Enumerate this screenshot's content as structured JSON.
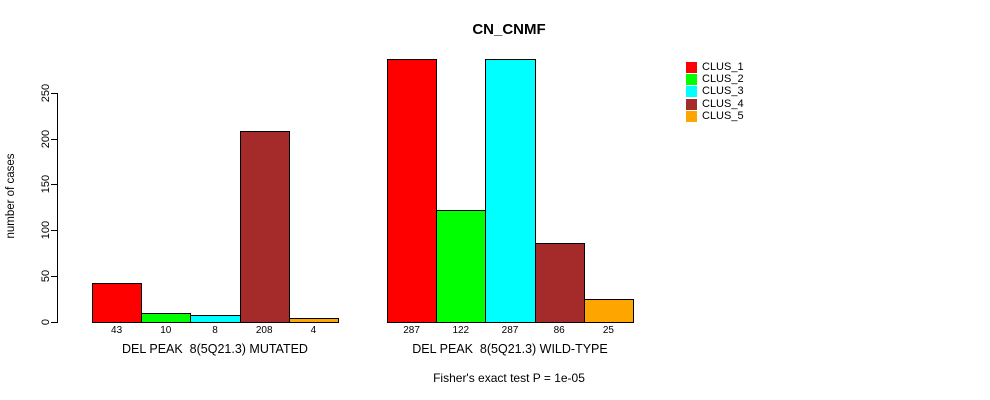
{
  "title": "CN_CNMF",
  "footer": "Fisher's exact test P = 1e-05",
  "y_axis": {
    "label": "number of cases",
    "ticks": [
      0,
      50,
      100,
      150,
      200,
      250
    ]
  },
  "legend": {
    "position": "right",
    "items": [
      {
        "label": "CLUS_1",
        "color": "#FF0000"
      },
      {
        "label": "CLUS_2",
        "color": "#00FF00"
      },
      {
        "label": "CLUS_3",
        "color": "#00FFFF"
      },
      {
        "label": "CLUS_4",
        "color": "#A52A2A"
      },
      {
        "label": "CLUS_5",
        "color": "#FFA500"
      }
    ]
  },
  "chart_data": {
    "type": "bar",
    "title": "CN_CNMF",
    "xlabel": "",
    "ylabel": "number of cases",
    "ylim": [
      0,
      290
    ],
    "yticks": [
      0,
      50,
      100,
      150,
      200,
      250
    ],
    "grid": false,
    "legend_position": "right",
    "value_labels_shown": true,
    "categories": [
      "DEL PEAK  8(5Q21.3) MUTATED",
      "DEL PEAK  8(5Q21.3) WILD-TYPE"
    ],
    "series": [
      {
        "name": "CLUS_1",
        "color": "#FF0000",
        "values": [
          43,
          287
        ]
      },
      {
        "name": "CLUS_2",
        "color": "#00FF00",
        "values": [
          10,
          122
        ]
      },
      {
        "name": "CLUS_3",
        "color": "#00FFFF",
        "values": [
          8,
          287
        ]
      },
      {
        "name": "CLUS_4",
        "color": "#A52A2A",
        "values": [
          208,
          86
        ]
      },
      {
        "name": "CLUS_5",
        "color": "#FFA500",
        "values": [
          4,
          25
        ]
      }
    ],
    "annotation": "Fisher's exact test P = 1e-05"
  }
}
